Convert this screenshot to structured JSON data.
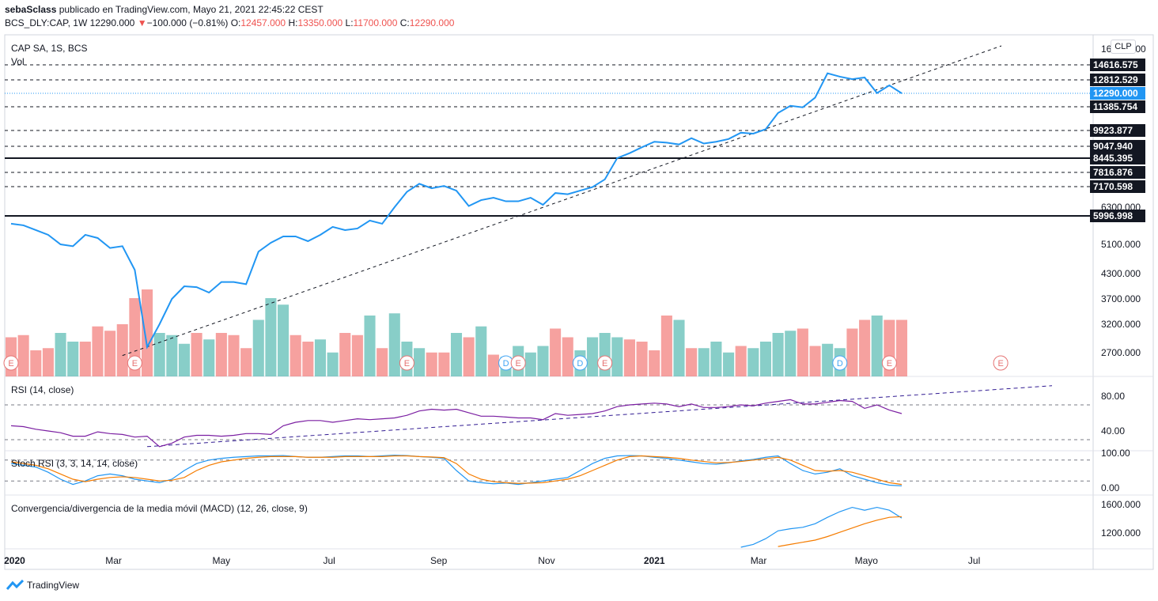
{
  "header": {
    "publisher": "sebaSclass",
    "published_text": "publicado en TradingView.com, Mayo 21, 2021 22:45:22 CEST",
    "symbol_line": "BCS_DLY:CAP, 1W",
    "last": "12290.000",
    "change": "−100.000 (−0.81%)",
    "o_label": "O:",
    "o_value": "12457.000",
    "h_label": "H:",
    "h_value": "13350.000",
    "l_label": "L:",
    "l_value": "11700.000",
    "c_label": "C:",
    "c_value": "12290.000"
  },
  "main_pane": {
    "legend": "CAP SA, 1S, BCS",
    "vol_label": "Vol",
    "currency": "CLP"
  },
  "rsi_pane": {
    "legend": "RSI (14, close)"
  },
  "stoch_pane": {
    "legend": "Stoch RSI (3, 3, 14, 14, close)"
  },
  "macd_pane": {
    "legend": "Convergencia/divergencia de la media móvil (MACD) (12, 26, close, 9)"
  },
  "footer": {
    "brand": "TradingView"
  },
  "colors": {
    "price": "#2196f3",
    "vol_up": "#26a69a",
    "vol_down": "#ef5350",
    "rsi": "#7b1fa2",
    "k": "#2196f3",
    "d": "#f57c00",
    "event_e": "#e57373",
    "event_d": "#42a5f5"
  },
  "chart_data": [
    {
      "type": "line",
      "pane": "price",
      "x_labels": [
        "2020",
        "Mar",
        "May",
        "Jul",
        "Sep",
        "Nov",
        "2021",
        "Mar",
        "Mayo",
        "Jul"
      ],
      "x": [
        "2020-01-03",
        "2020-01-10",
        "2020-01-17",
        "2020-01-24",
        "2020-01-31",
        "2020-02-07",
        "2020-02-14",
        "2020-02-21",
        "2020-02-28",
        "2020-03-06",
        "2020-03-13",
        "2020-03-20",
        "2020-03-27",
        "2020-04-03",
        "2020-04-10",
        "2020-04-17",
        "2020-04-24",
        "2020-05-01",
        "2020-05-08",
        "2020-05-15",
        "2020-05-22",
        "2020-05-29",
        "2020-06-05",
        "2020-06-12",
        "2020-06-19",
        "2020-06-26",
        "2020-07-03",
        "2020-07-10",
        "2020-07-17",
        "2020-07-24",
        "2020-07-31",
        "2020-08-07",
        "2020-08-14",
        "2020-08-21",
        "2020-08-28",
        "2020-09-04",
        "2020-09-11",
        "2020-09-18",
        "2020-09-25",
        "2020-10-02",
        "2020-10-09",
        "2020-10-16",
        "2020-10-23",
        "2020-10-30",
        "2020-11-06",
        "2020-11-13",
        "2020-11-20",
        "2020-11-27",
        "2020-12-04",
        "2020-12-11",
        "2020-12-18",
        "2020-12-25",
        "2021-01-01",
        "2021-01-08",
        "2021-01-15",
        "2021-01-22",
        "2021-01-29",
        "2021-02-05",
        "2021-02-12",
        "2021-02-19",
        "2021-02-26",
        "2021-03-05",
        "2021-03-12",
        "2021-03-19",
        "2021-03-26",
        "2021-04-02",
        "2021-04-09",
        "2021-04-16",
        "2021-04-23",
        "2021-04-30",
        "2021-05-07",
        "2021-05-14",
        "2021-05-21"
      ],
      "series": [
        {
          "name": "CAP SA, 1S, BCS",
          "values": [
            5750,
            5700,
            5550,
            5400,
            5100,
            5050,
            5400,
            5300,
            5000,
            5050,
            4400,
            2800,
            3200,
            3700,
            4000,
            3980,
            3850,
            4100,
            4100,
            4050,
            4900,
            5150,
            5350,
            5350,
            5200,
            5400,
            5650,
            5550,
            5600,
            5850,
            5750,
            6300,
            6950,
            7300,
            7100,
            7200,
            7000,
            6350,
            6600,
            6700,
            6550,
            6550,
            6700,
            6400,
            6900,
            6850,
            7000,
            7150,
            7500,
            8450,
            8700,
            9000,
            9300,
            9250,
            9150,
            9500,
            9200,
            9300,
            9450,
            9800,
            9750,
            10000,
            11000,
            11450,
            11350,
            12000,
            13600,
            13200,
            12900,
            13100,
            12300,
            12600,
            12290
          ]
        }
      ],
      "y_ticks": [
        "16000.000",
        "6300.000",
        "5100.000",
        "4300.000",
        "3700.000",
        "3200.000",
        "2700.000"
      ],
      "level_labels": [
        "14616.575",
        "12812.529",
        "12290.000",
        "11385.754",
        "9923.877",
        "9047.940",
        "8445.395",
        "7816.876",
        "7170.598",
        "5996.998"
      ],
      "volume": {
        "name": "Vol",
        "values": [
          90,
          95,
          60,
          65,
          100,
          80,
          80,
          115,
          105,
          120,
          180,
          200,
          100,
          95,
          75,
          100,
          85,
          100,
          95,
          65,
          130,
          180,
          165,
          95,
          80,
          85,
          55,
          100,
          95,
          140,
          65,
          145,
          80,
          65,
          55,
          55,
          100,
          90,
          115,
          50,
          45,
          70,
          55,
          70,
          110,
          90,
          60,
          90,
          100,
          90,
          85,
          80,
          60,
          140,
          130,
          65,
          65,
          80,
          55,
          70,
          65,
          80,
          100,
          105,
          110,
          70,
          75,
          65,
          110,
          130,
          140,
          130,
          130
        ],
        "up": [
          false,
          false,
          false,
          false,
          true,
          true,
          false,
          false,
          false,
          false,
          false,
          false,
          true,
          true,
          true,
          false,
          true,
          false,
          false,
          false,
          true,
          true,
          true,
          false,
          false,
          true,
          true,
          false,
          false,
          true,
          false,
          true,
          true,
          true,
          false,
          false,
          true,
          false,
          true,
          false,
          true,
          true,
          true,
          true,
          false,
          false,
          true,
          true,
          true,
          true,
          false,
          false,
          false,
          false,
          true,
          false,
          true,
          true,
          true,
          false,
          true,
          true,
          true,
          true,
          false,
          false,
          true,
          true,
          false,
          false,
          true,
          false,
          false
        ]
      },
      "events": [
        {
          "label": "E",
          "x": "2020-01-03",
          "kind": "E"
        },
        {
          "label": "E",
          "x": "2020-03-13",
          "kind": "E"
        },
        {
          "label": "E",
          "x": "2020-08-14",
          "kind": "E"
        },
        {
          "label": "D",
          "x": "2020-10-09",
          "kind": "D"
        },
        {
          "label": "E",
          "x": "2020-10-16",
          "kind": "E"
        },
        {
          "label": "D",
          "x": "2020-11-20",
          "kind": "D"
        },
        {
          "label": "E",
          "x": "2020-12-04",
          "kind": "E"
        },
        {
          "label": "D",
          "x": "2021-04-16",
          "kind": "D"
        },
        {
          "label": "E",
          "x": "2021-05-14",
          "kind": "E"
        },
        {
          "label": "E",
          "x": "2021-07-16",
          "kind": "E"
        }
      ]
    },
    {
      "type": "line",
      "pane": "rsi",
      "series": [
        {
          "name": "RSI (14, close)",
          "values": [
            46,
            45,
            42,
            40,
            38,
            34,
            34,
            39,
            37,
            36,
            33,
            34,
            22,
            26,
            33,
            35,
            35,
            34,
            35,
            37,
            37,
            36,
            46,
            50,
            52,
            52,
            50,
            52,
            54,
            53,
            54,
            55,
            58,
            63,
            65,
            64,
            65,
            61,
            57,
            57,
            56,
            55,
            55,
            53,
            60,
            58,
            59,
            60,
            63,
            68,
            70,
            71,
            72,
            71,
            68,
            71,
            67,
            67,
            68,
            70,
            69,
            72,
            74,
            76,
            71,
            71,
            73,
            75,
            74,
            66,
            70,
            64,
            60
          ]
        }
      ],
      "y_ticks": [
        "80.00",
        "40.00"
      ]
    },
    {
      "type": "line",
      "pane": "stoch_rsi",
      "series": [
        {
          "name": "K",
          "values": [
            70,
            65,
            60,
            45,
            25,
            10,
            20,
            35,
            40,
            35,
            25,
            20,
            15,
            25,
            50,
            70,
            80,
            85,
            88,
            90,
            92,
            92,
            93,
            90,
            88,
            88,
            90,
            92,
            92,
            90,
            92,
            94,
            93,
            90,
            88,
            85,
            50,
            20,
            15,
            12,
            14,
            10,
            15,
            20,
            25,
            30,
            50,
            70,
            85,
            92,
            93,
            92,
            88,
            85,
            80,
            75,
            70,
            68,
            72,
            78,
            82,
            88,
            92,
            70,
            50,
            40,
            45,
            55,
            35,
            25,
            15,
            8,
            6
          ]
        },
        {
          "name": "D",
          "values": [
            75,
            70,
            65,
            55,
            40,
            25,
            18,
            25,
            30,
            32,
            30,
            25,
            20,
            22,
            30,
            50,
            65,
            75,
            80,
            85,
            88,
            90,
            90,
            90,
            88,
            88,
            88,
            90,
            90,
            90,
            90,
            92,
            92,
            90,
            89,
            87,
            70,
            40,
            25,
            18,
            15,
            13,
            14,
            15,
            20,
            25,
            35,
            50,
            65,
            80,
            90,
            92,
            90,
            88,
            85,
            80,
            76,
            72,
            73,
            76,
            80,
            84,
            88,
            80,
            65,
            50,
            48,
            50,
            45,
            35,
            25,
            15,
            10
          ]
        }
      ],
      "y_ticks": [
        "100.00",
        "0.00"
      ]
    },
    {
      "type": "line",
      "pane": "macd",
      "series": [
        {
          "name": "MACD",
          "values": [
            null,
            null,
            null,
            null,
            null,
            null,
            null,
            null,
            null,
            null,
            null,
            null,
            null,
            null,
            null,
            null,
            null,
            null,
            null,
            null,
            null,
            null,
            null,
            null,
            null,
            null,
            null,
            null,
            null,
            null,
            null,
            null,
            null,
            null,
            null,
            null,
            null,
            null,
            null,
            null,
            null,
            null,
            null,
            null,
            null,
            null,
            null,
            null,
            null,
            null,
            null,
            null,
            null,
            null,
            null,
            null,
            null,
            null,
            null,
            1000,
            1040,
            1120,
            1230,
            1260,
            1280,
            1330,
            1420,
            1500,
            1560,
            1520,
            1560,
            1520,
            1410
          ]
        },
        {
          "name": "Signal",
          "values": [
            null,
            null,
            null,
            null,
            null,
            null,
            null,
            null,
            null,
            null,
            null,
            null,
            null,
            null,
            null,
            null,
            null,
            null,
            null,
            null,
            null,
            null,
            null,
            null,
            null,
            null,
            null,
            null,
            null,
            null,
            null,
            null,
            null,
            null,
            null,
            null,
            null,
            null,
            null,
            null,
            null,
            null,
            null,
            null,
            null,
            null,
            null,
            null,
            null,
            null,
            null,
            null,
            null,
            null,
            null,
            null,
            null,
            null,
            null,
            null,
            null,
            null,
            1010,
            1040,
            1070,
            1100,
            1150,
            1210,
            1270,
            1330,
            1380,
            1420,
            1430
          ]
        }
      ],
      "y_ticks": [
        "1600.000",
        "1200.000"
      ]
    }
  ]
}
